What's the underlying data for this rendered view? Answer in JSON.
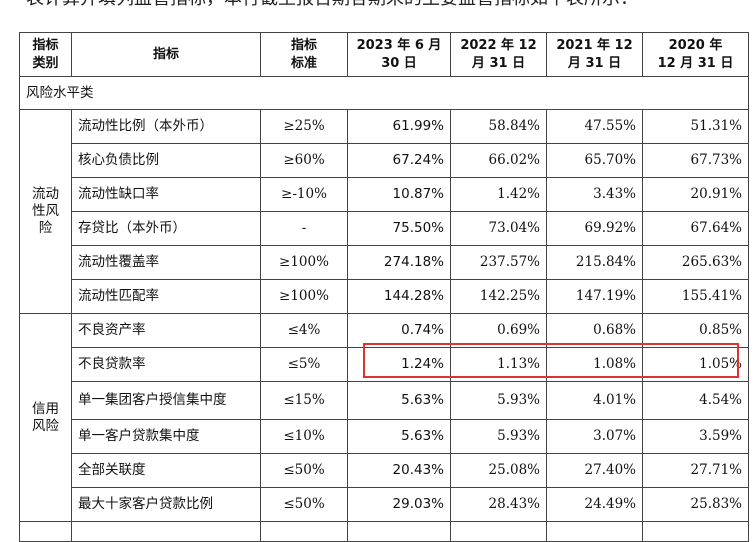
{
  "intro_text": "表计算并填列监管指标，本行截至报告期各期末的主要监管指标如下表所示：",
  "headers": {
    "category": "指标\n类别",
    "indicator": "指标",
    "standard": "指标\n标准",
    "col2023": "2023 年 6 月\n30 日",
    "col2022": "2022 年 12\n月 31 日",
    "col2021": "2021 年 12\n月 31 日",
    "col2020": "2020 年\n12 月 31 日"
  },
  "section_title": "风险水平类",
  "groups": [
    {
      "category": "流动\n性风\n险",
      "rows": [
        {
          "name": "流动性比例（本外币）",
          "standard": "≥25%",
          "v2023": "61.99%",
          "v2022": "58.84%",
          "v2021": "47.55%",
          "v2020": "51.31%"
        },
        {
          "name": "核心负债比例",
          "standard": "≥60%",
          "v2023": "67.24%",
          "v2022": "66.02%",
          "v2021": "65.70%",
          "v2020": "67.73%"
        },
        {
          "name": "流动性缺口率",
          "standard": "≥-10%",
          "v2023": "10.87%",
          "v2022": "1.42%",
          "v2021": "3.43%",
          "v2020": "20.91%"
        },
        {
          "name": "存贷比（本外币）",
          "standard": "-",
          "v2023": "75.50%",
          "v2022": "73.04%",
          "v2021": "69.92%",
          "v2020": "67.64%"
        },
        {
          "name": "流动性覆盖率",
          "standard": "≥100%",
          "v2023": "274.18%",
          "v2022": "237.57%",
          "v2021": "215.84%",
          "v2020": "265.63%"
        },
        {
          "name": "流动性匹配率",
          "standard": "≥100%",
          "v2023": "144.28%",
          "v2022": "142.25%",
          "v2021": "147.19%",
          "v2020": "155.41%"
        }
      ]
    },
    {
      "category": "信用\n风险",
      "rows": [
        {
          "name": "不良资产率",
          "standard": "≤4%",
          "v2023": "0.74%",
          "v2022": "0.69%",
          "v2021": "0.68%",
          "v2020": "0.85%"
        },
        {
          "name": "不良贷款率",
          "standard": "≤5%",
          "v2023": "1.24%",
          "v2022": "1.13%",
          "v2021": "1.08%",
          "v2020": "1.05%"
        },
        {
          "name": "单一集团客户授信集中度",
          "standard": "≤15%",
          "v2023": "5.63%",
          "v2022": "5.93%",
          "v2021": "4.01%",
          "v2020": "4.54%"
        },
        {
          "name": "单一客户贷款集中度",
          "standard": "≤10%",
          "v2023": "5.63%",
          "v2022": "5.93%",
          "v2021": "3.07%",
          "v2020": "3.59%"
        },
        {
          "name": "全部关联度",
          "standard": "≤50%",
          "v2023": "20.43%",
          "v2022": "25.08%",
          "v2021": "27.40%",
          "v2020": "27.71%"
        },
        {
          "name": "最大十家客户贷款比例",
          "standard": "≤50%",
          "v2023": "29.03%",
          "v2022": "28.43%",
          "v2021": "24.49%",
          "v2020": "25.83%"
        }
      ]
    }
  ],
  "highlight_color": "#e0322f"
}
